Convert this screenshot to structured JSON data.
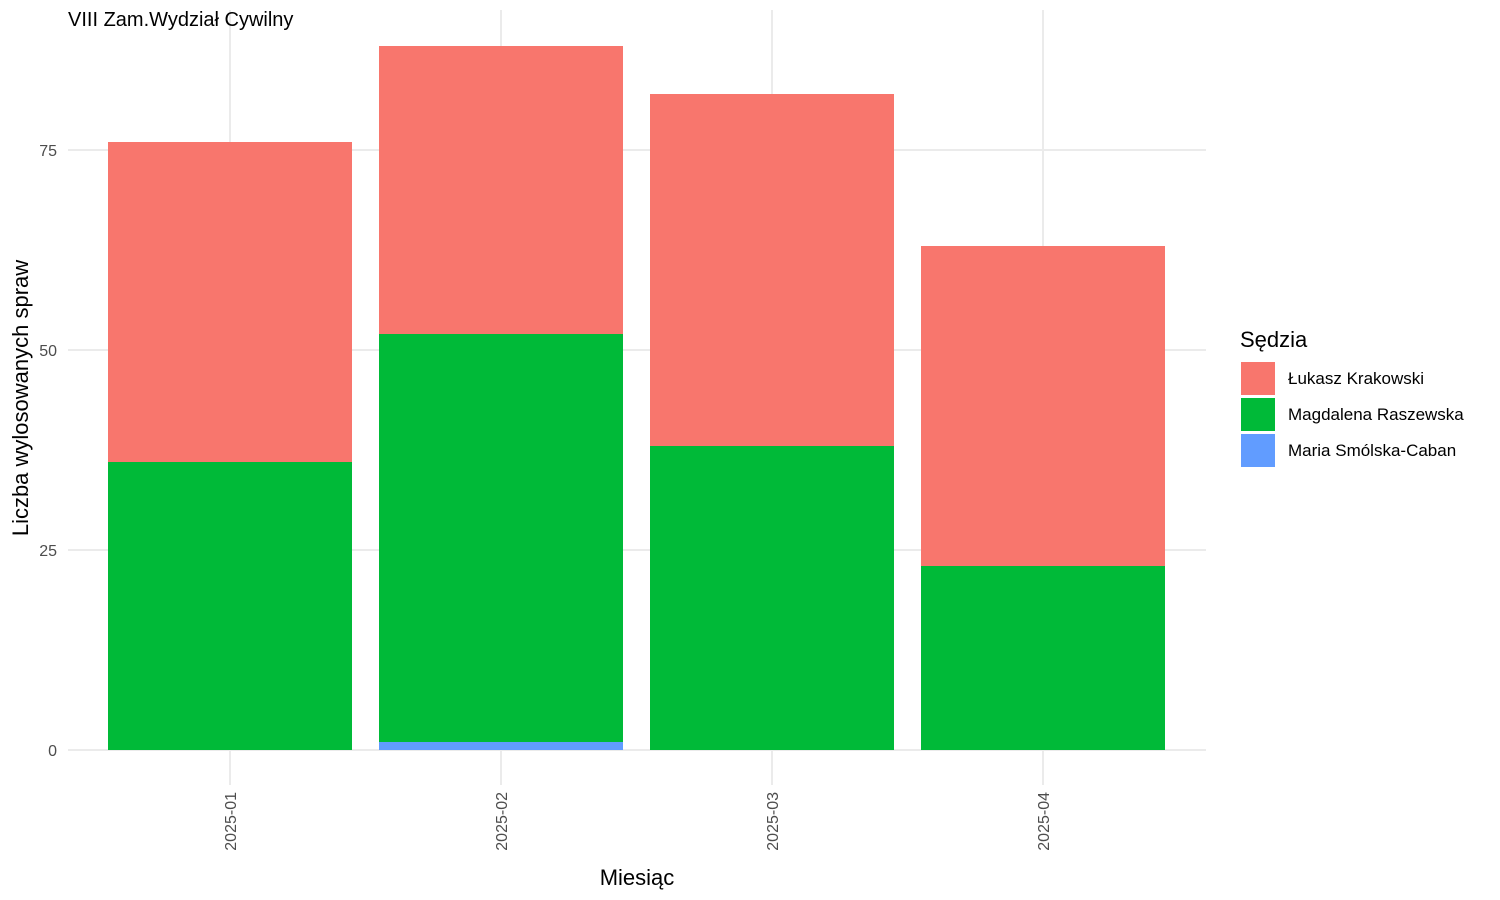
{
  "chart_data": {
    "type": "bar",
    "stacked": true,
    "title": "VIII Zam.Wydział Cywilny",
    "xlabel": "Miesiąc",
    "ylabel": "Liczba wylosowanych spraw",
    "categories": [
      "2025-01",
      "2025-02",
      "2025-03",
      "2025-04"
    ],
    "yticks": [
      0,
      25,
      50,
      75
    ],
    "ylim": [
      0,
      88
    ],
    "grid": true,
    "legend": {
      "title": "Sędzia",
      "position": "right"
    },
    "series": [
      {
        "name": "Maria Smólska-Caban",
        "color": "#619CFF",
        "values": [
          0,
          1,
          0,
          0
        ]
      },
      {
        "name": "Magdalena Raszewska",
        "color": "#00BA38",
        "values": [
          36,
          51,
          38,
          23
        ]
      },
      {
        "name": "Łukasz Krakowski",
        "color": "#F8766D",
        "values": [
          40,
          36,
          44,
          40
        ]
      }
    ],
    "legend_order": [
      "Łukasz Krakowski",
      "Magdalena Raszewska",
      "Maria Smólska-Caban"
    ]
  }
}
